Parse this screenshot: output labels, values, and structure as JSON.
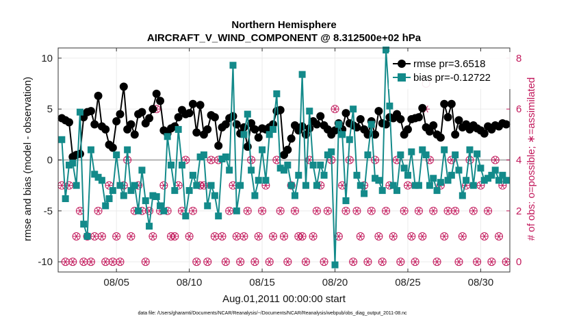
{
  "chart_data": {
    "type": "line",
    "title_line1": "Northern Hemisphere",
    "title_line2": "AIRCRAFT_V_WIND_COMPONENT @ 8.312500e+02 hPa",
    "xlabel": "Aug.01,2011 00:00:00 start",
    "ylabel": "rmse and bias (model - observation)",
    "ylabel_right": "# of obs: o=possible; ∗=assimilated",
    "footer": "data file: /Users/gharamti/Documents/NCAR/Reanalysis/~/Documents/NCAR/Reanalysis/webpub/obs_diag_output_2011-08.nc",
    "xlim": [
      1,
      32
    ],
    "ylim": [
      -11,
      11
    ],
    "ylim_right": [
      -0.4,
      8.4
    ],
    "x_ticks": [
      5,
      10,
      15,
      20,
      25,
      30
    ],
    "x_tick_labels": [
      "08/05",
      "08/10",
      "08/15",
      "08/20",
      "08/25",
      "08/30"
    ],
    "y_ticks": [
      -10,
      -5,
      0,
      5,
      10
    ],
    "y_tick_labels": [
      "-10",
      "-5",
      "0",
      "5",
      "10"
    ],
    "y_right_ticks": [
      0,
      2,
      4,
      6,
      8
    ],
    "y_right_tick_labels": [
      "0",
      "2",
      "4",
      "6",
      "8"
    ],
    "colors": {
      "rmse": "#000000",
      "bias": "#138a8a",
      "obs": "#c2185b",
      "zero_line": "#b3b3b3",
      "grid": "#ebebeb"
    },
    "legend_position": "top-right",
    "series": [
      {
        "name": "rmse",
        "label": "rmse pr=3.6518",
        "marker": "circle",
        "x": [
          1.25,
          1.5,
          1.75,
          2.0,
          2.25,
          2.5,
          2.75,
          3.0,
          3.25,
          3.5,
          3.75,
          4.0,
          4.25,
          4.5,
          4.75,
          5.0,
          5.25,
          5.5,
          5.75,
          6.0,
          6.25,
          6.5,
          6.75,
          7.0,
          7.25,
          7.5,
          7.75,
          8.0,
          8.25,
          8.5,
          8.75,
          9.0,
          9.25,
          9.5,
          9.75,
          10.0,
          10.25,
          10.5,
          10.75,
          11.0,
          11.25,
          11.5,
          11.75,
          12.0,
          12.25,
          12.5,
          12.75,
          13.0,
          13.25,
          13.5,
          13.75,
          14.0,
          14.25,
          14.5,
          14.75,
          15.0,
          15.25,
          15.5,
          15.75,
          16.0,
          16.25,
          16.5,
          16.75,
          17.0,
          17.25,
          17.5,
          17.75,
          18.0,
          18.25,
          18.5,
          18.75,
          19.0,
          19.25,
          19.5,
          19.75,
          20.0,
          20.25,
          20.5,
          20.75,
          21.0,
          21.25,
          21.5,
          21.75,
          22.0,
          22.25,
          22.5,
          22.75,
          23.0,
          23.25,
          23.5,
          23.75,
          24.0,
          24.25,
          24.5,
          24.75,
          25.0,
          25.25,
          25.5,
          25.75,
          26.0,
          26.25,
          26.5,
          26.75,
          27.0,
          27.25,
          27.5,
          27.75,
          28.0,
          28.25,
          28.5,
          28.75,
          29.0,
          29.25,
          29.5,
          29.75,
          30.0,
          30.25,
          30.5,
          30.75,
          31.0,
          31.25,
          31.5,
          31.75
        ],
        "values": [
          4.1,
          3.9,
          3.7,
          0.3,
          0.5,
          0.6,
          4.2,
          4.7,
          4.8,
          3.5,
          6.3,
          3.3,
          3.0,
          1.5,
          1.2,
          3.8,
          4.5,
          7.2,
          3.0,
          3.5,
          2.5,
          4.5,
          4.7,
          3.6,
          4.1,
          5.0,
          6.5,
          5.8,
          2.9,
          2.6,
          3.1,
          3.3,
          4.2,
          4.9,
          4.5,
          4.6,
          5.5,
          2.7,
          5.4,
          2.5,
          3.0,
          4.4,
          4.2,
          1.4,
          3.2,
          3.5,
          4.1,
          4.3,
          3.5,
          2.6,
          3.2,
          1.3,
          3.6,
          3.0,
          2.2,
          3.1,
          3.0,
          3.2,
          3.5,
          4.8,
          4.9,
          0.5,
          1.0,
          2.1,
          3.4,
          2.9,
          3.3,
          2.5,
          3.1,
          3.8,
          3.5,
          4.3,
          3.4,
          3.0,
          2.5,
          2.9,
          3.6,
          3.0,
          4.6,
          3.6,
          3.4,
          3.2,
          4.0,
          3.0,
          2.5,
          3.8,
          2.5,
          4.8,
          3.6,
          3.5,
          4.2,
          4.1,
          4.5,
          4.0,
          2.5,
          3.0,
          4.0,
          4.1,
          4.2,
          5.1,
          3.2,
          2.8,
          3.4,
          2.5,
          2.2,
          5.5,
          4.2,
          5.5,
          2.5,
          3.9,
          3.2,
          3.5,
          3.0,
          3.4,
          3.1,
          2.9,
          2.6,
          3.3,
          3.0,
          3.4,
          3.3,
          3.6,
          3.5
        ]
      },
      {
        "name": "bias",
        "label": "bias pr=-0.12722",
        "marker": "square",
        "x": [
          1.25,
          1.5,
          1.75,
          2.0,
          2.25,
          2.5,
          2.75,
          3.0,
          3.25,
          3.5,
          3.75,
          4.0,
          4.25,
          4.5,
          4.75,
          5.0,
          5.25,
          5.5,
          5.75,
          6.0,
          6.25,
          6.5,
          6.75,
          7.0,
          7.25,
          7.5,
          7.75,
          8.0,
          8.25,
          8.5,
          8.75,
          9.0,
          9.25,
          9.5,
          9.75,
          10.0,
          10.25,
          10.5,
          10.75,
          11.0,
          11.25,
          11.5,
          11.75,
          12.0,
          12.25,
          12.5,
          12.75,
          13.0,
          13.25,
          13.5,
          13.75,
          14.0,
          14.25,
          14.5,
          14.75,
          15.0,
          15.25,
          15.5,
          15.75,
          16.0,
          16.25,
          16.5,
          16.75,
          17.0,
          17.25,
          17.5,
          17.75,
          18.0,
          18.25,
          18.5,
          18.75,
          19.0,
          19.25,
          19.5,
          19.75,
          20.0,
          20.25,
          20.5,
          20.75,
          21.0,
          21.25,
          21.5,
          21.75,
          22.0,
          22.25,
          22.5,
          22.75,
          23.0,
          23.25,
          23.5,
          23.75,
          24.0,
          24.25,
          24.5,
          24.75,
          25.0,
          25.25,
          25.5,
          25.75,
          26.0,
          26.25,
          26.5,
          26.75,
          27.0,
          27.25,
          27.5,
          27.75,
          28.0,
          28.25,
          28.5,
          28.75,
          29.0,
          29.25,
          29.5,
          29.75,
          30.0,
          30.25,
          30.5,
          30.75,
          31.0,
          31.25,
          31.5,
          31.75
        ],
        "values": [
          2.0,
          -3.8,
          -0.5,
          -0.3,
          -2.5,
          4.7,
          -6.3,
          -7.5,
          1.0,
          -1.4,
          -1.7,
          -2.0,
          -4.5,
          -3.8,
          -3.0,
          0.5,
          -2.5,
          -3.5,
          1.0,
          -3.0,
          -2.5,
          -5.0,
          -1.0,
          -4.0,
          -6.5,
          -3.5,
          -3.6,
          -4.5,
          -5.0,
          2.3,
          -0.5,
          -3.0,
          3.0,
          -0.5,
          -5.5,
          -3.0,
          -1.5,
          -2.5,
          0.3,
          0.5,
          -4.5,
          -2.5,
          -3.5,
          -5.5,
          0.1,
          0.3,
          -1.0,
          9.3,
          -5.0,
          -2.5,
          2.5,
          4.5,
          -1.0,
          -3.5,
          -2.0,
          1.0,
          -2.0,
          2.5,
          3.0,
          6.5,
          -0.8,
          -1.0,
          -0.5,
          -2.5,
          -3.5,
          -1.5,
          8.4,
          -2.5,
          4.8,
          -0.5,
          -2.5,
          -0.5,
          -1.5,
          0.5,
          0.8,
          -10.3,
          3.5,
          2.5,
          -4.0,
          2.0,
          5.0,
          -1.5,
          -2.5,
          -3.3,
          0.5,
          3.5,
          -1.8,
          -2.0,
          -3.0,
          10.8,
          5.3,
          -2.5,
          -3.0,
          0.5,
          -0.8,
          -1.5,
          0.8,
          -2.5,
          -2.5,
          1.0,
          0.5,
          -2.5,
          -1.8,
          -3.0,
          -2.2,
          1.0,
          -2.0,
          -1.5,
          0.5,
          -1.0,
          -3.5,
          -2.0,
          1.0,
          -2.5,
          0.6,
          -0.8,
          -2.0,
          -1.8,
          -1.5,
          -1.0,
          -2.0,
          -1.5,
          -2.0
        ]
      },
      {
        "name": "obs_possible",
        "marker": "circle-open",
        "axis": "right",
        "x": [
          1.25,
          1.5,
          1.75,
          2.0,
          2.25,
          2.5,
          2.75,
          3.0,
          3.25,
          3.5,
          3.75,
          4.0,
          4.25,
          4.5,
          4.75,
          5.0,
          5.25,
          5.5,
          5.75,
          6.0,
          6.25,
          6.5,
          6.75,
          7.0,
          7.25,
          7.5,
          7.75,
          8.0,
          8.25,
          8.5,
          8.75,
          9.0,
          9.25,
          9.5,
          9.75,
          10.0,
          10.25,
          10.5,
          10.75,
          11.0,
          11.25,
          11.5,
          11.75,
          12.0,
          12.25,
          12.5,
          12.75,
          13.0,
          13.25,
          13.5,
          13.75,
          14.0,
          14.25,
          14.5,
          14.75,
          15.0,
          15.25,
          15.5,
          15.75,
          16.0,
          16.25,
          16.5,
          16.75,
          17.0,
          17.25,
          17.5,
          17.75,
          18.0,
          18.25,
          18.5,
          18.75,
          19.0,
          19.25,
          19.5,
          19.75,
          20.0,
          20.25,
          20.5,
          20.75,
          21.0,
          21.25,
          21.5,
          21.75,
          22.0,
          22.25,
          22.5,
          22.75,
          23.0,
          23.25,
          23.5,
          23.75,
          24.0,
          24.25,
          24.5,
          24.75,
          25.0,
          25.25,
          25.5,
          25.75,
          26.0,
          26.25,
          26.5,
          26.75,
          27.0,
          27.25,
          27.5,
          27.75,
          28.0,
          28.25,
          28.5,
          28.75,
          29.0,
          29.25,
          29.5,
          29.75,
          30.0,
          30.25,
          30.5,
          30.75,
          31.0,
          31.25,
          31.5,
          31.75
        ],
        "values": [
          3,
          0,
          3,
          0,
          1,
          2,
          0,
          1,
          0,
          1,
          2,
          1,
          0,
          3,
          0,
          1,
          0,
          3,
          4,
          1,
          2,
          3,
          2,
          0,
          2,
          1,
          6,
          2,
          3,
          2,
          1,
          1,
          3,
          2,
          4,
          1,
          2,
          0,
          3,
          3,
          0,
          4,
          1,
          4,
          1,
          0,
          2,
          3,
          1,
          0,
          1,
          2,
          4,
          0,
          1,
          2,
          3,
          0,
          1,
          4,
          2,
          1,
          0,
          3,
          2,
          1,
          1,
          0,
          4,
          1,
          2,
          3,
          0,
          2,
          4,
          6,
          1,
          3,
          2,
          4,
          0,
          2,
          1,
          3,
          0,
          2,
          4,
          1,
          0,
          2,
          3,
          1,
          4,
          0,
          2,
          3,
          1,
          0,
          2,
          1,
          7,
          4,
          2,
          0,
          3,
          1,
          2,
          4,
          2,
          0,
          1,
          3,
          4,
          2,
          0,
          3,
          1,
          2,
          0,
          4,
          1,
          3,
          0
        ]
      },
      {
        "name": "obs_assimilated",
        "marker": "asterisk",
        "axis": "right",
        "x": [
          1.25,
          1.5,
          1.75,
          2.0,
          2.25,
          2.5,
          2.75,
          3.0,
          3.25,
          3.5,
          3.75,
          4.0,
          4.25,
          4.5,
          4.75,
          5.0,
          5.25,
          5.5,
          5.75,
          6.0,
          6.25,
          6.5,
          6.75,
          7.0,
          7.25,
          7.5,
          7.75,
          8.0,
          8.25,
          8.5,
          8.75,
          9.0,
          9.25,
          9.5,
          9.75,
          10.0,
          10.25,
          10.5,
          10.75,
          11.0,
          11.25,
          11.5,
          11.75,
          12.0,
          12.25,
          12.5,
          12.75,
          13.0,
          13.25,
          13.5,
          13.75,
          14.0,
          14.25,
          14.5,
          14.75,
          15.0,
          15.25,
          15.5,
          15.75,
          16.0,
          16.25,
          16.5,
          16.75,
          17.0,
          17.25,
          17.5,
          17.75,
          18.0,
          18.25,
          18.5,
          18.75,
          19.0,
          19.25,
          19.5,
          19.75,
          20.0,
          20.25,
          20.5,
          20.75,
          21.0,
          21.25,
          21.5,
          21.75,
          22.0,
          22.25,
          22.5,
          22.75,
          23.0,
          23.25,
          23.5,
          23.75,
          24.0,
          24.25,
          24.5,
          24.75,
          25.0,
          25.25,
          25.5,
          25.75,
          26.0,
          26.25,
          26.5,
          26.75,
          27.0,
          27.25,
          27.5,
          27.75,
          28.0,
          28.25,
          28.5,
          28.75,
          29.0,
          29.25,
          29.5,
          29.75,
          30.0,
          30.25,
          30.5,
          30.75,
          31.0,
          31.25,
          31.5,
          31.75
        ],
        "values": [
          3,
          0,
          3,
          0,
          1,
          2,
          0,
          1,
          0,
          1,
          2,
          1,
          0,
          3,
          0,
          1,
          0,
          3,
          4,
          1,
          2,
          3,
          2,
          0,
          2,
          1,
          6,
          2,
          3,
          2,
          1,
          1,
          3,
          2,
          4,
          1,
          2,
          0,
          3,
          3,
          0,
          4,
          1,
          4,
          1,
          0,
          2,
          3,
          1,
          0,
          1,
          2,
          4,
          0,
          1,
          2,
          3,
          0,
          1,
          4,
          2,
          1,
          0,
          3,
          2,
          1,
          1,
          0,
          4,
          1,
          2,
          3,
          0,
          2,
          4,
          6,
          1,
          3,
          2,
          4,
          0,
          2,
          1,
          3,
          0,
          2,
          4,
          1,
          0,
          2,
          3,
          1,
          4,
          0,
          2,
          3,
          1,
          0,
          2,
          1,
          6,
          4,
          2,
          0,
          3,
          1,
          2,
          4,
          2,
          0,
          1,
          3,
          4,
          2,
          0,
          3,
          1,
          2,
          0,
          4,
          1,
          3,
          0
        ]
      }
    ]
  }
}
